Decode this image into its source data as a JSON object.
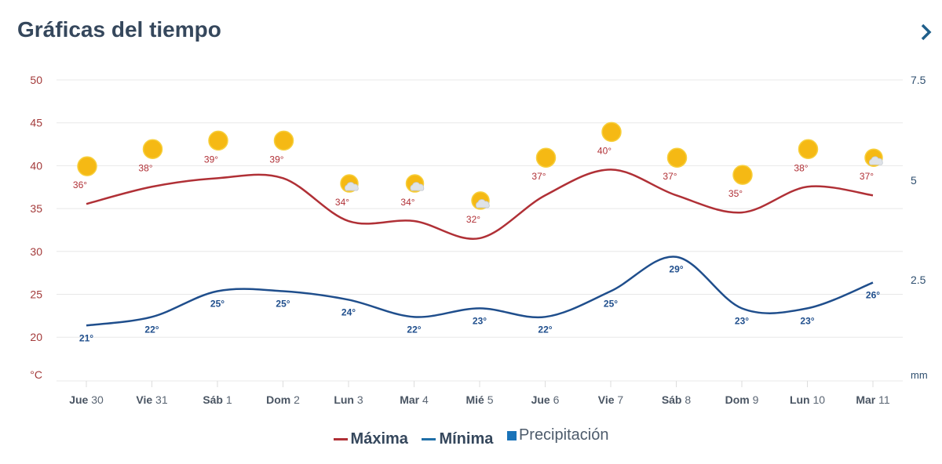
{
  "header": {
    "title": "Gráficas del tiempo",
    "next_icon": "chevron-right-icon"
  },
  "colors": {
    "max": "#b03036",
    "min": "#1f4e8c",
    "precip": "#1a73b8",
    "left_axis": "#a33a3a",
    "right_axis": "#2f4f6f",
    "grid": "#e8e8e8",
    "title": "#35475c"
  },
  "chart_data": {
    "type": "line",
    "title": "Gráficas del tiempo",
    "categories": [
      "Jue 30",
      "Vie 31",
      "Sáb 1",
      "Dom 2",
      "Lun 3",
      "Mar 4",
      "Mié 5",
      "Jue 6",
      "Vie 7",
      "Sáb 8",
      "Dom 9",
      "Lun 10",
      "Mar 11"
    ],
    "series": [
      {
        "name": "Máxima",
        "values": [
          36,
          38,
          39,
          39,
          34,
          34,
          32,
          37,
          40,
          37,
          35,
          38,
          37
        ],
        "labels": [
          "36°",
          "38°",
          "39°",
          "39°",
          "34°",
          "34°",
          "32°",
          "37°",
          "40°",
          "37°",
          "35°",
          "38°",
          "37°"
        ]
      },
      {
        "name": "Mínima",
        "values": [
          21,
          22,
          25,
          25,
          24,
          22,
          23,
          22,
          25,
          29,
          23,
          23,
          26
        ],
        "labels": [
          "21°",
          "22°",
          "25°",
          "25°",
          "24°",
          "22°",
          "23°",
          "22°",
          "25°",
          "29°",
          "23°",
          "23°",
          "26°"
        ]
      },
      {
        "name": "Precipitación",
        "values": [
          0,
          0,
          0,
          0,
          0,
          0,
          0,
          0,
          0,
          0,
          0,
          0,
          0
        ]
      }
    ],
    "weather_icons": [
      "sun",
      "sun",
      "sun",
      "sun",
      "partly-cloudy",
      "partly-cloudy",
      "partly-cloudy",
      "sun",
      "sun",
      "sun",
      "sun",
      "sun",
      "partly-cloudy"
    ],
    "y_left": {
      "label": "°C",
      "ticks": [
        "50",
        "45",
        "40",
        "35",
        "30",
        "25",
        "20"
      ],
      "range": [
        15,
        50
      ]
    },
    "y_right": {
      "label": "mm",
      "ticks": [
        "7.5",
        "5",
        "2.5"
      ],
      "range": [
        0,
        7.5
      ]
    },
    "grid": true,
    "legend": {
      "position": "bottom",
      "items": [
        "Máxima",
        "Mínima",
        "Precipitación"
      ]
    }
  }
}
